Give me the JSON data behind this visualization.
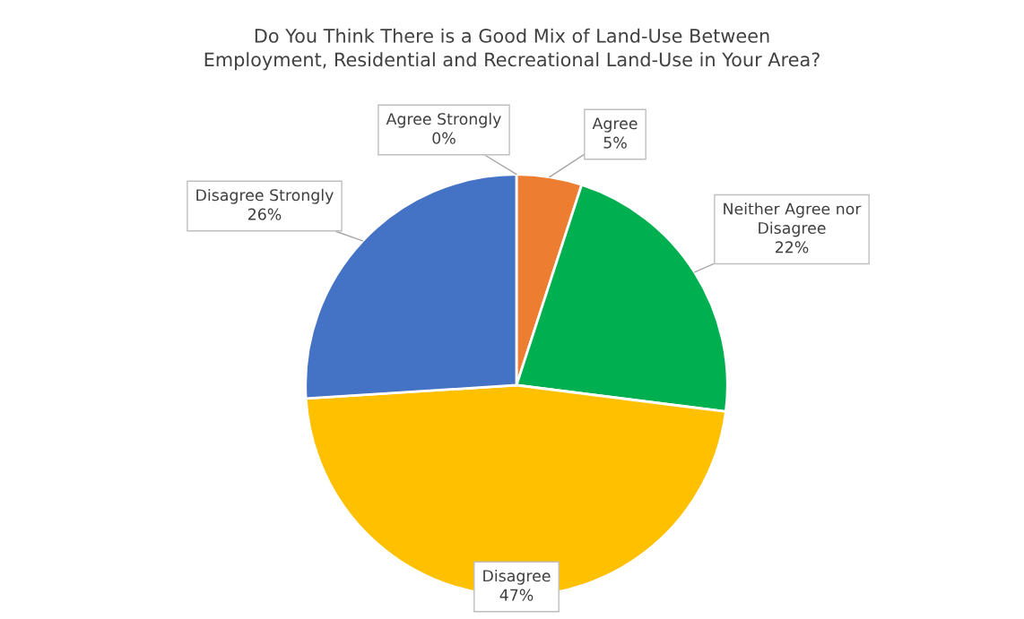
{
  "chart_data": {
    "type": "pie",
    "title": "Do You Think There is a Good Mix of Land-Use Between\nEmployment, Residential and Recreational Land-Use in Your Area?",
    "categories": [
      "Agree Strongly",
      "Agree",
      "Neither Agree nor\nDisagree",
      "Disagree",
      "Disagree Strongly"
    ],
    "values": [
      0,
      5,
      22,
      47,
      26
    ],
    "value_labels": [
      "0%",
      "5%",
      "22%",
      "47%",
      "26%"
    ],
    "colors": [
      "#a5a5a5",
      "#ed7d31",
      "#00b050",
      "#ffc000",
      "#4472c4"
    ],
    "legend": false
  }
}
